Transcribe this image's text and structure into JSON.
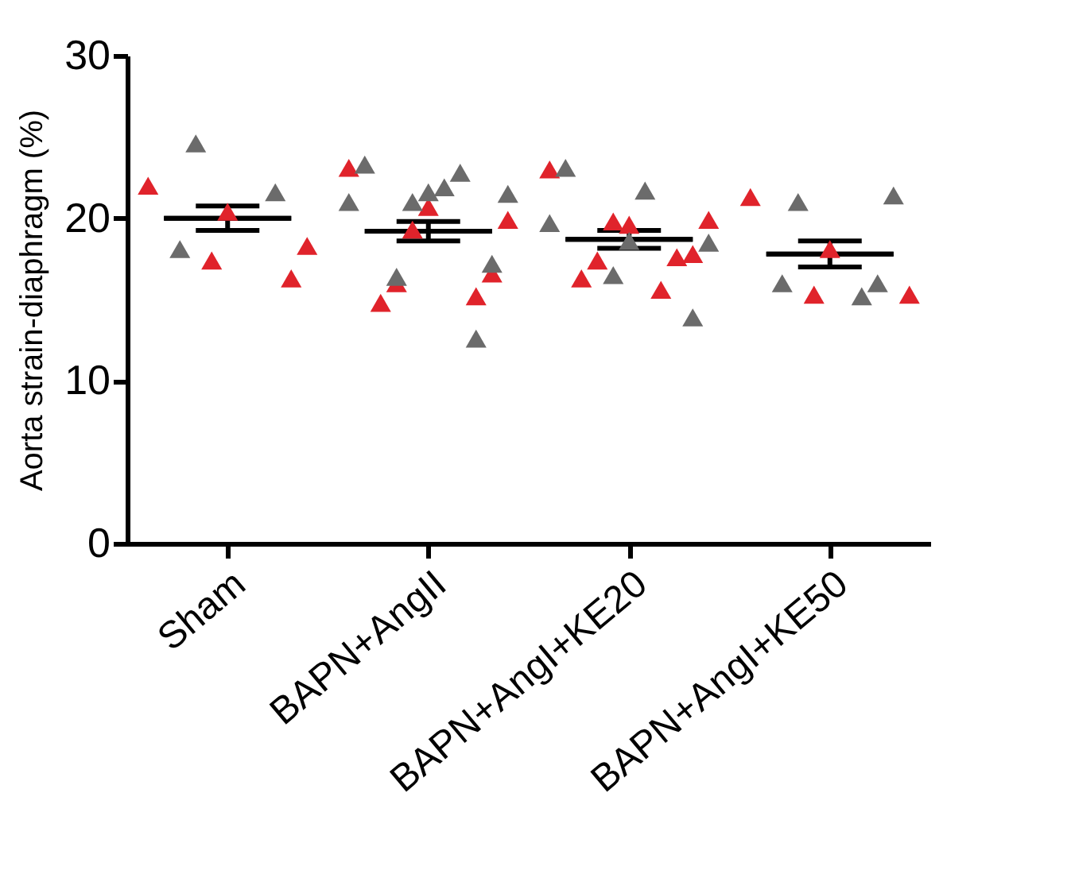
{
  "chart_data": {
    "type": "scatter",
    "ylabel": "Aorta strain-diaphragm (%)",
    "categories": [
      "Sham",
      "BAPN+AngII",
      "BAPN+AngI+KE20",
      "BAPN+AngI+KE50"
    ],
    "ylim": [
      0,
      30
    ],
    "yticks": [
      0,
      10,
      20,
      30
    ],
    "grid": false,
    "series": [
      {
        "type": "scatter",
        "marker": "triangle",
        "color": "#e0232b",
        "x": [
          "Sham",
          "Sham",
          "Sham",
          "Sham",
          "Sham",
          "BAPN+AngII",
          "BAPN+AngII",
          "BAPN+AngII",
          "BAPN+AngII",
          "BAPN+AngII",
          "BAPN+AngII",
          "BAPN+AngII",
          "BAPN+AngII",
          "BAPN+AngI+KE20",
          "BAPN+AngI+KE20",
          "BAPN+AngI+KE20",
          "BAPN+AngI+KE20",
          "BAPN+AngI+KE20",
          "BAPN+AngI+KE20",
          "BAPN+AngI+KE20",
          "BAPN+AngI+KE20",
          "BAPN+AngI+KE20",
          "BAPN+AngI+KE50",
          "BAPN+AngI+KE50",
          "BAPN+AngI+KE50",
          "BAPN+AngI+KE50"
        ],
        "values": [
          22.0,
          20.4,
          18.3,
          17.4,
          16.3,
          23.1,
          20.7,
          19.9,
          19.3,
          16.6,
          16.0,
          15.2,
          14.8,
          23.0,
          19.6,
          19.9,
          19.8,
          17.8,
          17.4,
          17.6,
          16.3,
          15.6,
          21.3,
          18.1,
          15.3,
          15.3
        ]
      },
      {
        "type": "scatter",
        "marker": "triangle",
        "color": "#6b6b6b",
        "x": [
          "Sham",
          "Sham",
          "Sham",
          "BAPN+AngII",
          "BAPN+AngII",
          "BAPN+AngII",
          "BAPN+AngII",
          "BAPN+AngII",
          "BAPN+AngII",
          "BAPN+AngII",
          "BAPN+AngII",
          "BAPN+AngII",
          "BAPN+AngII",
          "BAPN+AngI+KE20",
          "BAPN+AngI+KE20",
          "BAPN+AngI+KE20",
          "BAPN+AngI+KE20",
          "BAPN+AngI+KE20",
          "BAPN+AngI+KE20",
          "BAPN+AngI+KE20",
          "BAPN+AngI+KE50",
          "BAPN+AngI+KE50",
          "BAPN+AngI+KE50",
          "BAPN+AngI+KE50",
          "BAPN+AngI+KE50"
        ],
        "values": [
          24.6,
          21.6,
          18.1,
          22.8,
          23.3,
          21.9,
          21.0,
          21.6,
          21.5,
          21.0,
          17.2,
          16.4,
          12.6,
          23.1,
          21.7,
          19.7,
          18.6,
          18.5,
          16.5,
          13.9,
          21.4,
          21.0,
          16.0,
          16.0,
          15.2
        ]
      },
      {
        "type": "box",
        "color": "#000000",
        "boxes": [
          {
            "low": 19.25,
            "q1": 20.0,
            "median": 20.0,
            "q3": 20.0,
            "high": 20.75
          },
          {
            "low": 18.6,
            "q1": 19.2,
            "median": 19.2,
            "q3": 19.2,
            "high": 19.8
          },
          {
            "low": 18.15,
            "q1": 18.7,
            "median": 18.7,
            "q3": 18.7,
            "high": 19.25
          },
          {
            "low": 17.0,
            "q1": 17.8,
            "median": 17.8,
            "q3": 17.8,
            "high": 18.6
          }
        ]
      }
    ]
  }
}
